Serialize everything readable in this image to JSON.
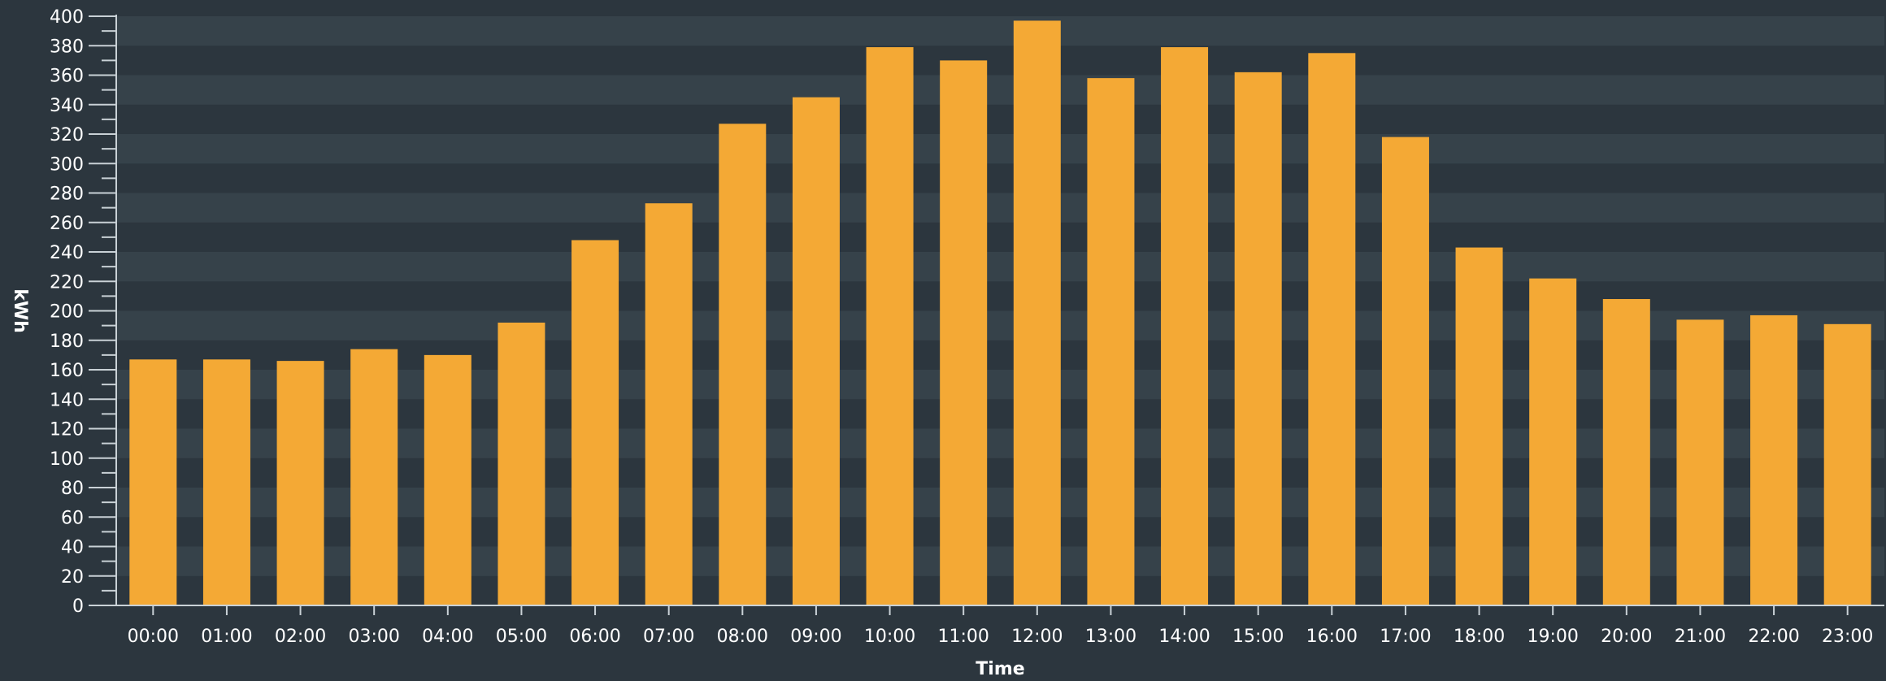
{
  "chart_data": {
    "type": "bar",
    "title": "",
    "xlabel": "Time",
    "ylabel": "kWh",
    "ylim": [
      0,
      400
    ],
    "ytick_step": 20,
    "grid": "horizontal-bands",
    "legend": "none",
    "categories": [
      "00:00",
      "01:00",
      "02:00",
      "03:00",
      "04:00",
      "05:00",
      "06:00",
      "07:00",
      "08:00",
      "09:00",
      "10:00",
      "11:00",
      "12:00",
      "13:00",
      "14:00",
      "15:00",
      "16:00",
      "17:00",
      "18:00",
      "19:00",
      "20:00",
      "21:00",
      "22:00",
      "23:00"
    ],
    "series": [
      {
        "values": [
          167,
          167,
          166,
          174,
          170,
          192,
          248,
          273,
          327,
          345,
          379,
          370,
          397,
          358,
          379,
          362,
          375,
          318,
          243,
          222,
          208,
          194,
          197,
          191
        ]
      }
    ],
    "colors": {
      "bar": "#f4a935",
      "background": "#2c363e",
      "band_light": "#36424a",
      "band_dark": "#2c363e",
      "axis": "#c9d1d6",
      "text": "#ffffff"
    }
  }
}
